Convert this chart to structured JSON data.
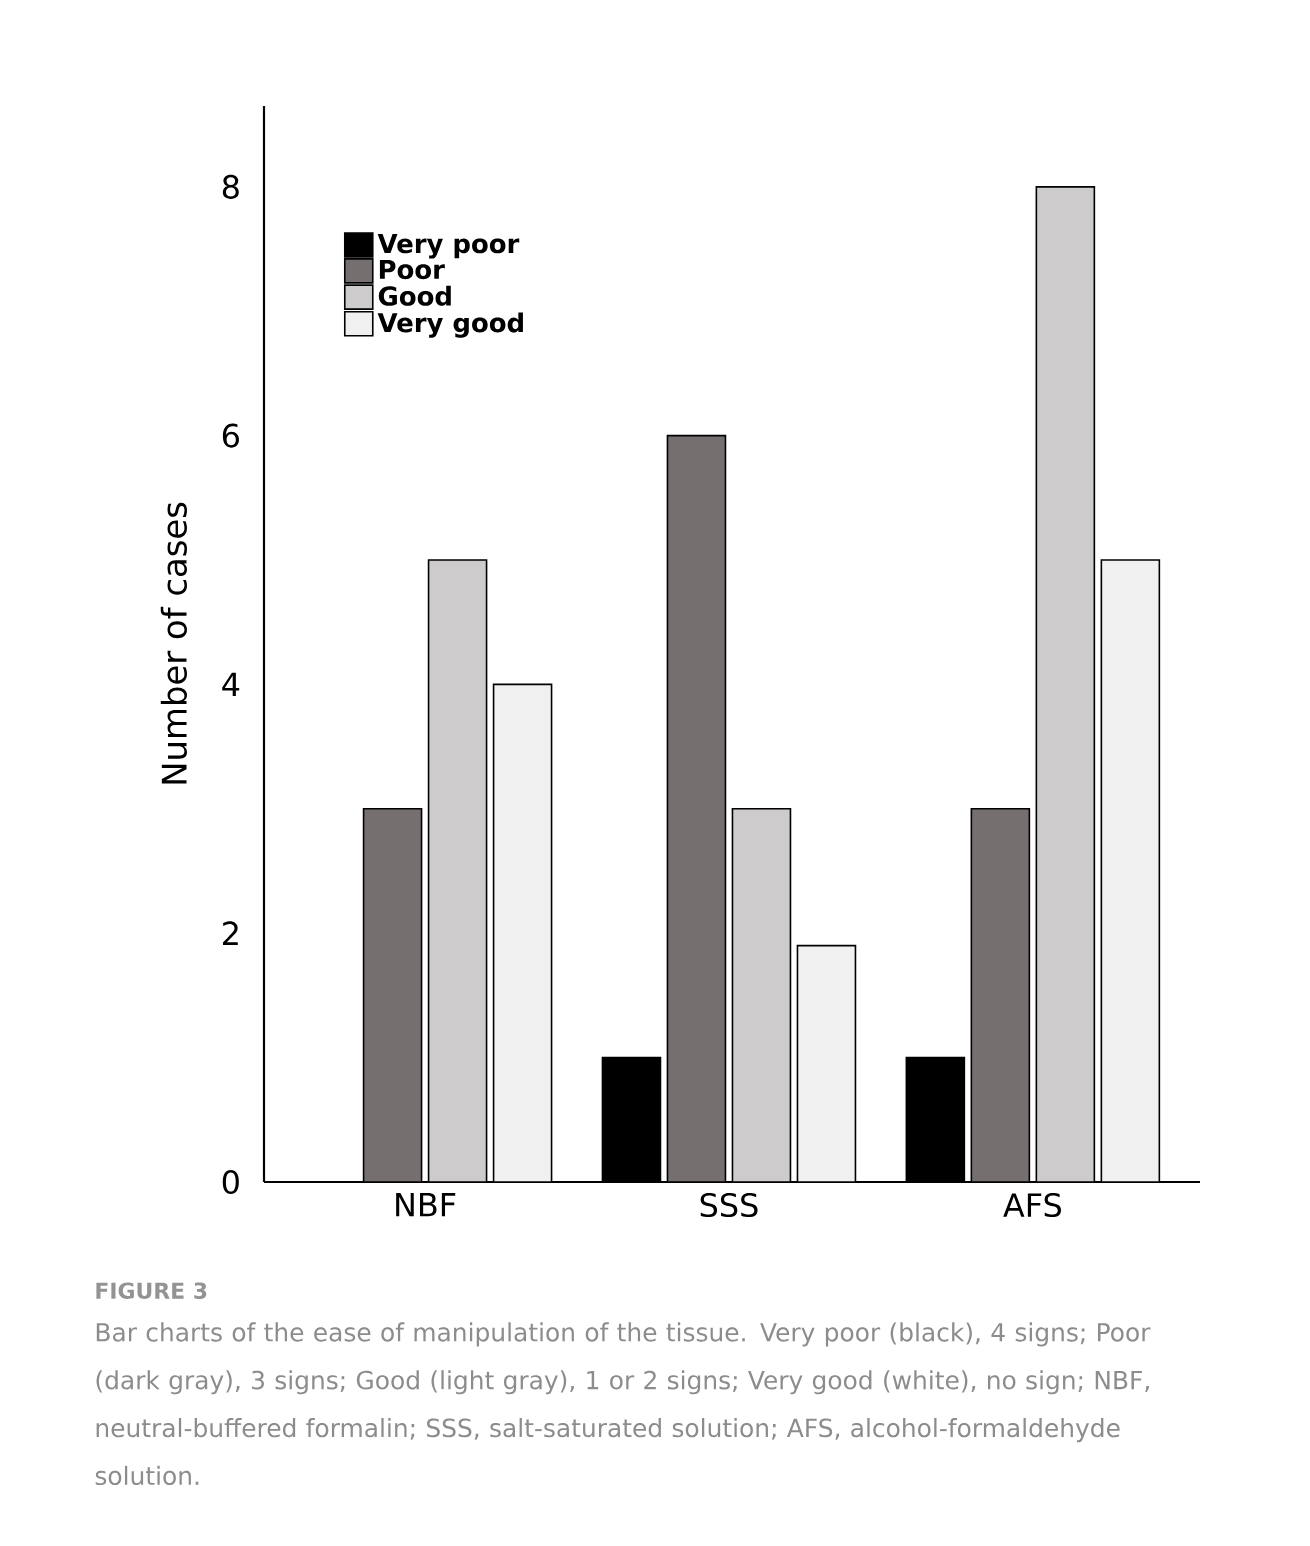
{
  "chart_data": {
    "type": "bar",
    "categories": [
      "NBF",
      "SSS",
      "AFS"
    ],
    "series": [
      {
        "name": "Very poor",
        "color": "#000000",
        "values": [
          0,
          1,
          1
        ]
      },
      {
        "name": "Poor",
        "color": "#756f6f",
        "values": [
          3,
          6,
          3
        ]
      },
      {
        "name": "Good",
        "color": "#cdcbcc",
        "values": [
          5,
          3,
          8
        ]
      },
      {
        "name": "Very good",
        "color": "#f0f0f0",
        "values": [
          4,
          1.9,
          5
        ]
      }
    ],
    "ylabel": "Number of cases",
    "ylim": [
      0,
      8.65
    ],
    "yticks": [
      0,
      2,
      4,
      6,
      8
    ],
    "grid": false,
    "legend": "top left",
    "annotations": [
      "FIGURE 3",
      "Bar charts of the ease of manipulation of the tissue. Very poor (black), 4 signs; Poor (dark gray), 3 signs; Good (light gray), 1 or 2 signs; Very good (white), no sign; NBF, neutral-buffered formalin; SSS, salt-saturated solution; AFS, alcohol-formaldehyde solution."
    ]
  }
}
